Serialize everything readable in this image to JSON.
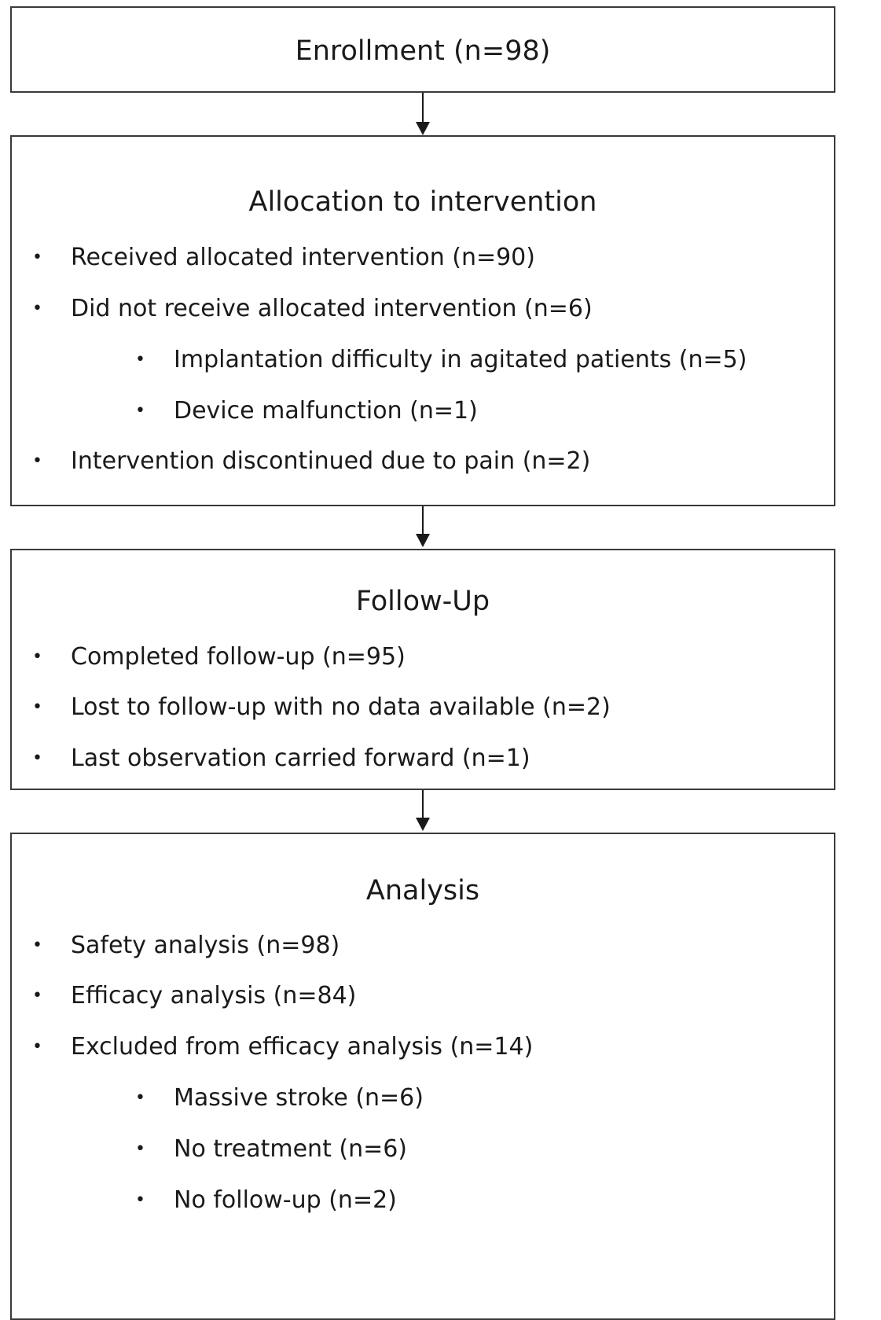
{
  "enrollment": {
    "title": "Enrollment (n=98)"
  },
  "allocation": {
    "title": "Allocation to intervention",
    "items": [
      {
        "text": "Received allocated intervention (n=90)"
      },
      {
        "text": "Did not receive allocated intervention (n=6)"
      },
      {
        "text": "Implantation difficulty in agitated patients (n=5)"
      },
      {
        "text": "Device malfunction (n=1)"
      },
      {
        "text": "Intervention discontinued due to pain (n=2)"
      }
    ]
  },
  "followup": {
    "title": "Follow-Up",
    "items": [
      {
        "text": "Completed follow-up (n=95)"
      },
      {
        "text": "Lost to follow-up with no data available (n=2)"
      },
      {
        "text": "Last observation carried forward (n=1)"
      }
    ]
  },
  "analysis": {
    "title": "Analysis",
    "items": [
      {
        "text": "Safety analysis (n=98)"
      },
      {
        "text": "Efficacy analysis (n=84)"
      },
      {
        "text": "Excluded from efficacy analysis (n=14)"
      },
      {
        "text": "Massive stroke (n=6)"
      },
      {
        "text": "No treatment (n=6)"
      },
      {
        "text": "No follow-up (n=2)"
      }
    ]
  },
  "bullet_char": "•"
}
